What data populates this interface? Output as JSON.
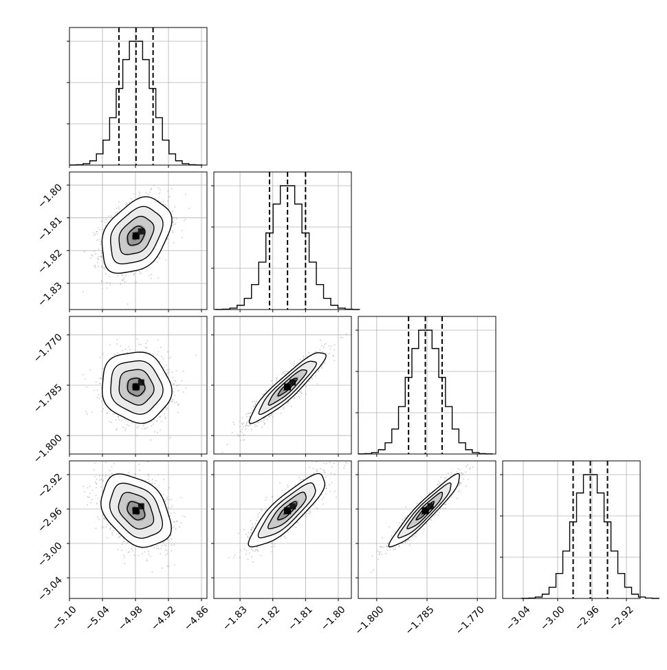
{
  "chart_data": {
    "type": "corner",
    "grid": true,
    "parameters": [
      {
        "range": [
          -5.1,
          -4.85
        ],
        "ticks": [
          -5.1,
          -5.04,
          -4.98,
          -4.92,
          -4.86
        ],
        "tick_labels": [
          "−5.10",
          "−5.04",
          "−4.98",
          "−4.92",
          "−4.86"
        ],
        "mean": -4.979,
        "sd": 0.03,
        "quantiles": [
          -5.01,
          -4.979,
          -4.948
        ]
      },
      {
        "range": [
          -1.838,
          -1.796
        ],
        "ticks": [
          -1.83,
          -1.82,
          -1.81,
          -1.8
        ],
        "tick_labels": [
          "−1.83",
          "−1.82",
          "−1.81",
          "−1.80"
        ],
        "mean": -1.8155,
        "sd": 0.0055,
        "quantiles": [
          -1.821,
          -1.8155,
          -1.81
        ]
      },
      {
        "range": [
          -1.8055,
          -1.7645
        ],
        "ticks": [
          -1.8,
          -1.785,
          -1.77
        ],
        "tick_labels": [
          "−1.800",
          "−1.785",
          "−1.770"
        ],
        "mean": -1.7855,
        "sd": 0.005,
        "quantiles": [
          -1.7905,
          -1.7855,
          -1.7805
        ]
      },
      {
        "range": [
          -3.064,
          -2.904
        ],
        "ticks": [
          -3.04,
          -3.0,
          -2.96,
          -2.92
        ],
        "tick_labels": [
          "−3.04",
          "−3.00",
          "−2.96",
          "−2.92"
        ],
        "mean": -2.962,
        "sd": 0.02,
        "quantiles": [
          -2.982,
          -2.962,
          -2.942
        ]
      }
    ],
    "correlations": [
      [
        1.0,
        0.35,
        -0.08,
        -0.35
      ],
      [
        0.35,
        1.0,
        0.92,
        0.85
      ],
      [
        -0.08,
        0.92,
        1.0,
        0.94
      ],
      [
        -0.35,
        0.85,
        0.94,
        1.0
      ]
    ],
    "histogram_bins": 20,
    "contour_levels_sigma": [
      0.5,
      1.0,
      1.5,
      2.0
    ],
    "colors": {
      "line": "#000000",
      "points": "#9a9a9a",
      "grid": "#b0b0b0"
    }
  }
}
